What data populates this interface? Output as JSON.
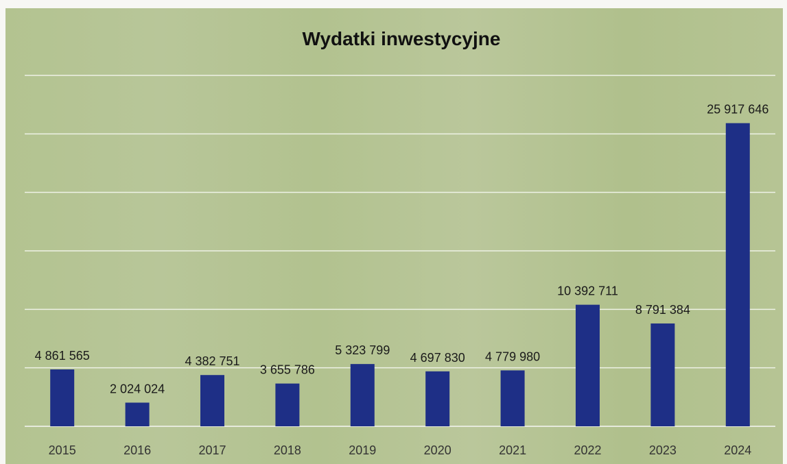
{
  "chart_data": {
    "type": "bar",
    "title": "Wydatki inwestycyjne",
    "xlabel": "",
    "ylabel": "",
    "categories": [
      "2015",
      "2016",
      "2017",
      "2018",
      "2019",
      "2020",
      "2021",
      "2022",
      "2023",
      "2024"
    ],
    "values": [
      4861565,
      2024024,
      4382751,
      3655786,
      5323799,
      4697830,
      4779980,
      10392711,
      8791384,
      25917646
    ],
    "value_labels": [
      "4 861 565",
      "2 024 024",
      "4 382 751",
      "3 655 786",
      "5 323 799",
      "4 697 830",
      "4 779 980",
      "10 392 711",
      "8 791 384",
      "25 917 646"
    ],
    "ylim": [
      0,
      30000000
    ],
    "grid": true,
    "legend": "none",
    "colors": {
      "bar": "#1e2f86",
      "grid": "#eef2e6",
      "background": "#b4c492"
    }
  }
}
